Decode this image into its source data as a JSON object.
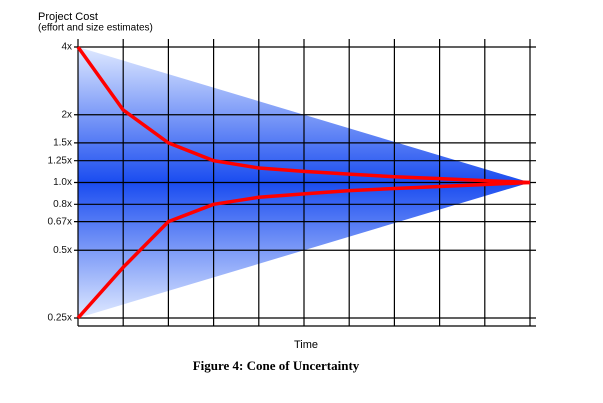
{
  "chart_data": {
    "type": "line",
    "title": "Project Cost",
    "subtitle": "(effort and size estimates)",
    "x_label": "Time",
    "caption": "Figure 4: Cone of Uncertainty",
    "log_scale_y": true,
    "grid": true,
    "x": [
      0,
      1,
      2,
      3,
      4,
      5,
      6,
      7,
      8,
      9,
      10
    ],
    "xlim": [
      0,
      10
    ],
    "ylim": [
      0.25,
      4
    ],
    "yticks": [
      {
        "value": 4,
        "label": "4x"
      },
      {
        "value": 2,
        "label": "2x"
      },
      {
        "value": 1.5,
        "label": "1.5x"
      },
      {
        "value": 1.25,
        "label": "1.25x"
      },
      {
        "value": 1.0,
        "label": "1.0x"
      },
      {
        "value": 0.8,
        "label": "0.8x"
      },
      {
        "value": 0.67,
        "label": "0.67x"
      },
      {
        "value": 0.5,
        "label": "0.5x"
      },
      {
        "value": 0.25,
        "label": "0.25x"
      }
    ],
    "cone_color": "#1a4cf0",
    "series": [
      {
        "color": "#ff0000",
        "values": [
          4,
          2.1,
          1.5,
          1.25,
          1.16,
          1.12,
          1.09,
          1.06,
          1.04,
          1.02,
          1.0
        ]
      },
      {
        "color": "#ff0000",
        "values": [
          0.25,
          0.42,
          0.67,
          0.8,
          0.86,
          0.89,
          0.92,
          0.94,
          0.96,
          0.98,
          1.0
        ]
      }
    ]
  }
}
